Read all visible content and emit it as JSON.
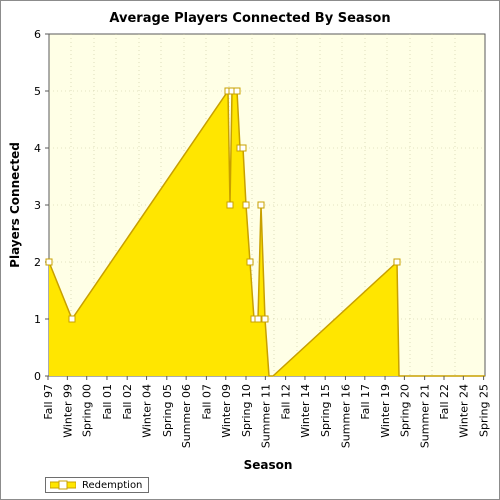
{
  "chart_data": {
    "type": "area",
    "title": "Average Players Connected By Season",
    "xlabel": "Season",
    "ylabel": "Players Connected",
    "ylim": [
      0,
      6
    ],
    "yticks": [
      "0",
      "1",
      "2",
      "3",
      "4",
      "5",
      "6"
    ],
    "x_tick_labels": [
      "Fall 97",
      "Winter 99",
      "Spring 00",
      "Fall 01",
      "Fall 02",
      "Winter 04",
      "Spring 05",
      "Summer 06",
      "Fall 07",
      "Winter 09",
      "Spring 10",
      "Summer 11",
      "Fall 12",
      "Winter 14",
      "Spring 15",
      "Summer 16",
      "Fall 17",
      "Winter 19",
      "Spring 20",
      "Summer 21",
      "Fall 22",
      "Winter 24",
      "Spring 25"
    ],
    "grid": true,
    "legend_position": "bottom-left",
    "series": [
      {
        "name": "Redemption",
        "fill_color": "#ffe600",
        "line_color": "#c8a000",
        "marker_color": "#ffffff",
        "points": [
          {
            "x": "Fall 97",
            "y": 2
          },
          {
            "x": "Winter 99",
            "y": 1
          },
          {
            "x": "Winter 09",
            "y": 5
          },
          {
            "x": "Winter 09",
            "y": 3
          },
          {
            "x": "Spring 10",
            "y": 5
          },
          {
            "x": "Spring 10",
            "y": 5
          },
          {
            "x": "Spring 10",
            "y": 4
          },
          {
            "x": "Spring 10",
            "y": 4
          },
          {
            "x": "Spring 10",
            "y": 3
          },
          {
            "x": "Summer 11",
            "y": 2
          },
          {
            "x": "Summer 11",
            "y": 1
          },
          {
            "x": "Summer 11",
            "y": 1
          },
          {
            "x": "Summer 11",
            "y": 3
          },
          {
            "x": "Summer 11",
            "y": 1
          },
          {
            "x": "Fall 12",
            "y": 0
          },
          {
            "x": "Winter 19",
            "y": 0
          },
          {
            "x": "Spring 20",
            "y": 2
          },
          {
            "x": "Spring 20",
            "y": 0
          },
          {
            "x": "Spring 25",
            "y": 0
          }
        ]
      }
    ]
  },
  "colors": {
    "plot_background": "#ffffe6",
    "axis": "#5a5a5a",
    "grid": "#c8c8a0"
  }
}
